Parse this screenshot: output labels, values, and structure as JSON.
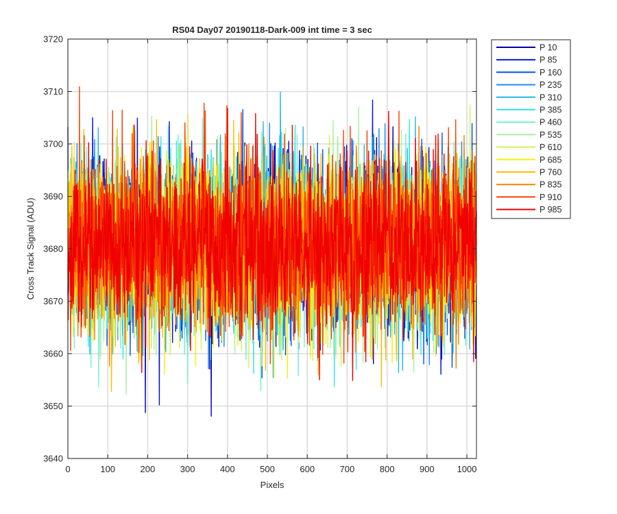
{
  "chart_data": {
    "type": "line",
    "title": "RS04 Day07 20190118-Dark-009 int time = 3 sec",
    "xlabel": "Pixels",
    "ylabel": "Cross Track Signal (ADU)",
    "xlim": [
      0,
      1024
    ],
    "ylim": [
      3640,
      3720
    ],
    "xticks": [
      0,
      100,
      200,
      300,
      400,
      500,
      600,
      700,
      800,
      900,
      1000
    ],
    "yticks": [
      3640,
      3650,
      3660,
      3670,
      3680,
      3690,
      3700,
      3710,
      3720
    ],
    "grid": true,
    "legend_position": "outside-top-right",
    "n_points_per_series": 1024,
    "noise_mean": 3681,
    "noise_std": 8,
    "series": [
      {
        "name": "P 10",
        "color": "#0000A5"
      },
      {
        "name": "P 85",
        "color": "#0010D8"
      },
      {
        "name": "P 160",
        "color": "#0050F0"
      },
      {
        "name": "P 235",
        "color": "#1A8BEB"
      },
      {
        "name": "P 310",
        "color": "#20B8E8"
      },
      {
        "name": "P 385",
        "color": "#30E8E8"
      },
      {
        "name": "P 460",
        "color": "#70F0D0"
      },
      {
        "name": "P 535",
        "color": "#A8F0A0"
      },
      {
        "name": "P 610",
        "color": "#D8F050"
      },
      {
        "name": "P 685",
        "color": "#F8F000"
      },
      {
        "name": "P 760",
        "color": "#F8C000"
      },
      {
        "name": "P 835",
        "color": "#F88000"
      },
      {
        "name": "P 910",
        "color": "#F84000"
      },
      {
        "name": "P 985",
        "color": "#F00000"
      }
    ]
  }
}
